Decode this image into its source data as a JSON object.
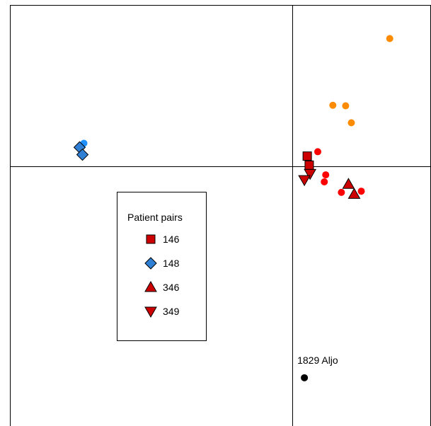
{
  "chart_data": {
    "type": "scatter",
    "title": "",
    "xlabel": "",
    "ylabel": "",
    "xlim": [
      -1.0,
      0.48
    ],
    "ylim": [
      -0.89,
      0.55
    ],
    "grid": false,
    "axes_lines": {
      "x": 0,
      "y": 0
    },
    "legend": {
      "title": "Patient pairs",
      "placement": "center-left",
      "entries": [
        {
          "label": "146",
          "marker": "square",
          "color": "#cc0000"
        },
        {
          "label": "148",
          "marker": "diamond",
          "color": "#2f7fd4"
        },
        {
          "label": "346",
          "marker": "triangle-up",
          "color": "#cc0000"
        },
        {
          "label": "349",
          "marker": "triangle-down",
          "color": "#cc0000"
        }
      ]
    },
    "series": [
      {
        "name": "146",
        "marker": "square",
        "color": "#cc0000",
        "points": [
          {
            "x": 0.045,
            "y": 0.033
          },
          {
            "x": 0.052,
            "y": 0.002
          }
        ]
      },
      {
        "name": "148",
        "marker": "diamond",
        "color": "#2f7fd4",
        "points": [
          {
            "x": -0.755,
            "y": 0.063
          },
          {
            "x": -0.745,
            "y": 0.038
          }
        ]
      },
      {
        "name": "346",
        "marker": "triangle-up",
        "color": "#cc0000",
        "points": [
          {
            "x": 0.19,
            "y": -0.063
          },
          {
            "x": 0.21,
            "y": -0.097
          }
        ]
      },
      {
        "name": "349",
        "marker": "triangle-down",
        "color": "#cc0000",
        "points": [
          {
            "x": 0.055,
            "y": -0.027
          },
          {
            "x": 0.035,
            "y": -0.048
          }
        ]
      },
      {
        "marker": "circle",
        "color": "#1e90ff",
        "points": [
          {
            "x": -0.74,
            "y": 0.077
          }
        ]
      },
      {
        "marker": "circle",
        "color": "#ff0000",
        "points": [
          {
            "x": 0.082,
            "y": 0.048
          },
          {
            "x": 0.11,
            "y": -0.031
          },
          {
            "x": 0.105,
            "y": -0.055
          },
          {
            "x": 0.165,
            "y": -0.091
          },
          {
            "x": 0.235,
            "y": -0.087
          }
        ]
      },
      {
        "marker": "circle",
        "color": "#ff8c00",
        "points": [
          {
            "x": 0.335,
            "y": 0.435
          },
          {
            "x": 0.135,
            "y": 0.207
          },
          {
            "x": 0.18,
            "y": 0.205
          },
          {
            "x": 0.2,
            "y": 0.147
          }
        ]
      },
      {
        "marker": "circle",
        "color": "#000000",
        "points": [
          {
            "x": 0.035,
            "y": -0.725
          }
        ]
      }
    ],
    "annotations": [
      {
        "text": "1829 Aljo",
        "x": 0.035,
        "y": -0.725
      }
    ]
  }
}
